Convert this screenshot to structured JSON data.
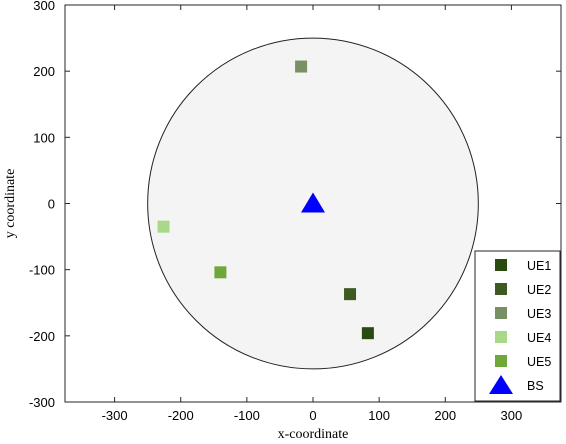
{
  "chart_data": {
    "type": "scatter",
    "xlim": [
      -375,
      375
    ],
    "ylim": [
      -300,
      300
    ],
    "xticks": [
      -300,
      -200,
      -100,
      0,
      100,
      200,
      300
    ],
    "yticks": [
      -300,
      -200,
      -100,
      0,
      100,
      200,
      300
    ],
    "xlabel": "x-coordinate",
    "ylabel": "y coordinate",
    "grid": false,
    "legend_position": "bottom-right",
    "coverage_circle": {
      "center": [
        0,
        0
      ],
      "radius": 250,
      "fill": "#f4f4f4",
      "stroke": "#222222"
    },
    "series": [
      {
        "name": "UE1",
        "marker": "square",
        "color": "#2a4a0f",
        "points": [
          [
            83,
            -196
          ]
        ]
      },
      {
        "name": "UE2",
        "marker": "square",
        "color": "#3c5a22",
        "points": [
          [
            56,
            -137
          ]
        ]
      },
      {
        "name": "UE3",
        "marker": "square",
        "color": "#7a8f63",
        "points": [
          [
            -18,
            207
          ]
        ]
      },
      {
        "name": "UE4",
        "marker": "square",
        "color": "#a8d888",
        "points": [
          [
            -226,
            -35
          ]
        ]
      },
      {
        "name": "UE5",
        "marker": "square",
        "color": "#6fa83a",
        "points": [
          [
            -140,
            -104
          ]
        ]
      },
      {
        "name": "BS",
        "marker": "triangle",
        "color": "#0000ff",
        "points": [
          [
            0,
            0
          ]
        ]
      }
    ]
  }
}
